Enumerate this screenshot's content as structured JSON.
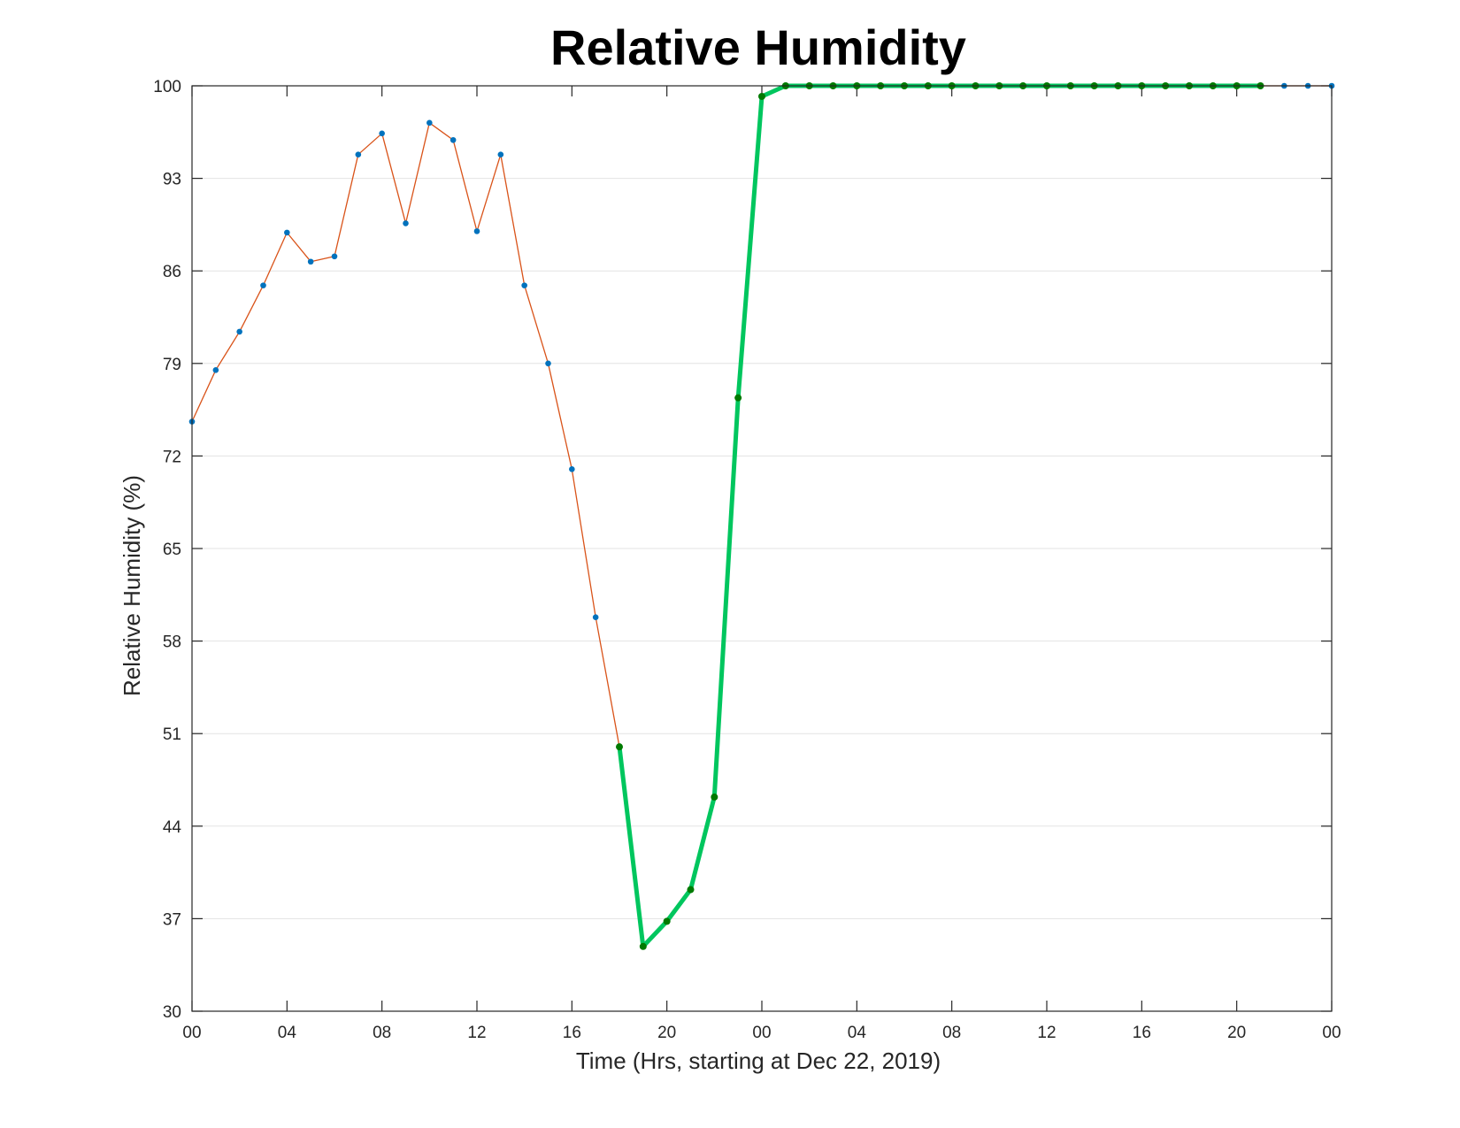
{
  "chart_data": {
    "type": "line",
    "title": "Relative Humidity",
    "xlabel": "Time (Hrs, starting at Dec 22, 2019)",
    "ylabel": "Relative Humidity (%)",
    "xlim": [
      0,
      48
    ],
    "ylim": [
      30,
      100
    ],
    "x_ticks": [
      0,
      4,
      8,
      12,
      16,
      20,
      24,
      28,
      32,
      36,
      40,
      44,
      48
    ],
    "x_tick_labels": [
      "00",
      "04",
      "08",
      "12",
      "16",
      "20",
      "00",
      "04",
      "08",
      "12",
      "16",
      "20",
      "00"
    ],
    "y_ticks": [
      30,
      37,
      44,
      51,
      58,
      65,
      72,
      79,
      86,
      93,
      100
    ],
    "y_tick_labels": [
      "30",
      "37",
      "44",
      "51",
      "58",
      "65",
      "72",
      "79",
      "86",
      "93",
      "100"
    ],
    "grid": "horizontal",
    "legend": "none",
    "series": [
      {
        "style": "thin line with dot markers",
        "line_color": "#d95319",
        "marker_color": "#0072bd",
        "x": [
          0,
          1,
          2,
          3,
          4,
          5,
          6,
          7,
          8,
          9,
          10,
          11,
          12,
          13,
          14,
          15,
          16,
          17,
          18,
          19,
          20,
          21,
          22,
          23,
          24,
          25,
          26,
          27,
          28,
          29,
          30,
          31,
          32,
          33,
          34,
          35,
          36,
          37,
          38,
          39,
          40,
          41,
          42,
          43,
          44,
          45,
          46,
          47,
          48
        ],
        "y": [
          74.6,
          78.5,
          81.4,
          84.9,
          88.9,
          86.7,
          87.1,
          94.8,
          96.4,
          89.6,
          97.2,
          95.9,
          89.0,
          94.8,
          84.9,
          79.0,
          71.0,
          59.8,
          50.0,
          34.9,
          36.8,
          39.2,
          46.2,
          76.4,
          99.2,
          100,
          100,
          100,
          100,
          100,
          100,
          100,
          100,
          100,
          100,
          100,
          100,
          100,
          100,
          100,
          100,
          100,
          100,
          100,
          100,
          100,
          100,
          100,
          100
        ]
      },
      {
        "style": "highlighted thick line with dot markers",
        "line_color": "#00c65e",
        "marker_color": "#007a00",
        "x": [
          18,
          19,
          20,
          21,
          22,
          23,
          24,
          25,
          26,
          27,
          28,
          29,
          30,
          31,
          32,
          33,
          34,
          35,
          36,
          37,
          38,
          39,
          40,
          41,
          42,
          43,
          44,
          45
        ],
        "y": [
          50.0,
          34.9,
          36.8,
          39.2,
          46.2,
          76.4,
          99.2,
          100,
          100,
          100,
          100,
          100,
          100,
          100,
          100,
          100,
          100,
          100,
          100,
          100,
          100,
          100,
          100,
          100,
          100,
          100,
          100,
          100
        ]
      }
    ]
  }
}
